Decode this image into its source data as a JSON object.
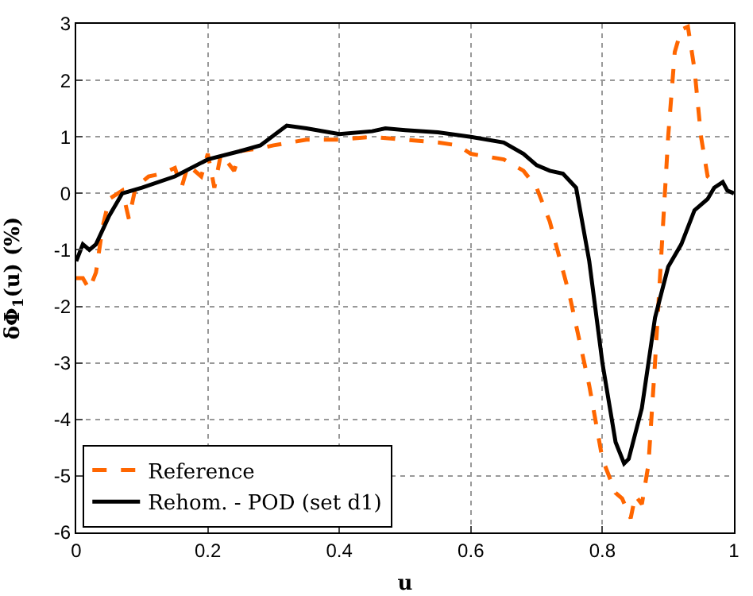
{
  "chart_data": {
    "type": "line",
    "xlabel": "u",
    "ylabel": "δΦ$_{1}$(u) (%)",
    "xlim": [
      0,
      1
    ],
    "ylim": [
      -6,
      3
    ],
    "xticks": [
      0,
      0.2,
      0.4,
      0.6,
      0.8,
      1
    ],
    "yticks": [
      -6,
      -5,
      -4,
      -3,
      -2,
      -1,
      0,
      1,
      2,
      3
    ],
    "grid": true,
    "legend": "bottom left",
    "marker": "none",
    "series": [
      {
        "name": "Reference",
        "color": "#ff6600",
        "line_style": "dashed",
        "x": [
          0,
          0.01,
          0.02,
          0.03,
          0.04,
          0.05,
          0.07,
          0.08,
          0.09,
          0.11,
          0.13,
          0.15,
          0.16,
          0.17,
          0.19,
          0.2,
          0.21,
          0.22,
          0.24,
          0.25,
          0.28,
          0.3,
          0.35,
          0.4,
          0.45,
          0.5,
          0.55,
          0.58,
          0.6,
          0.65,
          0.68,
          0.7,
          0.72,
          0.75,
          0.78,
          0.8,
          0.82,
          0.83,
          0.843,
          0.85,
          0.86,
          0.87,
          0.88,
          0.89,
          0.9,
          0.91,
          0.92,
          0.93,
          0.94,
          0.95,
          0.96,
          0.965
        ],
        "values": [
          -1.5,
          -1.5,
          -1.7,
          -1.4,
          -0.6,
          -0.1,
          0.05,
          -0.45,
          0.1,
          0.3,
          0.35,
          0.45,
          0.1,
          0.5,
          0.3,
          0.7,
          0.1,
          0.7,
          0.4,
          0.75,
          0.8,
          0.85,
          0.95,
          0.95,
          1.0,
          0.95,
          0.9,
          0.85,
          0.7,
          0.6,
          0.4,
          0.1,
          -0.5,
          -1.8,
          -3.4,
          -4.7,
          -5.3,
          -5.4,
          -5.75,
          -5.35,
          -5.5,
          -4.8,
          -3,
          -1,
          1,
          2.5,
          2.9,
          2.95,
          2.2,
          1,
          0.3,
          0.25
        ]
      },
      {
        "name": "Rehom. - POD (set d1)",
        "color": "#000000",
        "line_style": "solid",
        "x": [
          0,
          0.01,
          0.02,
          0.03,
          0.05,
          0.07,
          0.1,
          0.15,
          0.2,
          0.25,
          0.28,
          0.32,
          0.35,
          0.4,
          0.45,
          0.47,
          0.5,
          0.55,
          0.6,
          0.65,
          0.68,
          0.7,
          0.72,
          0.74,
          0.76,
          0.78,
          0.8,
          0.82,
          0.833,
          0.84,
          0.86,
          0.88,
          0.9,
          0.92,
          0.94,
          0.96,
          0.97,
          0.983,
          0.99,
          1
        ],
        "values": [
          -1.2,
          -0.9,
          -1.0,
          -0.9,
          -0.4,
          0.0,
          0.1,
          0.3,
          0.6,
          0.75,
          0.85,
          1.2,
          1.15,
          1.05,
          1.1,
          1.15,
          1.12,
          1.08,
          1.0,
          0.9,
          0.7,
          0.5,
          0.4,
          0.35,
          0.1,
          -1.2,
          -3,
          -4.4,
          -4.78,
          -4.7,
          -3.8,
          -2.2,
          -1.3,
          -0.9,
          -0.3,
          -0.1,
          0.1,
          0.2,
          0.05,
          0
        ]
      }
    ]
  }
}
